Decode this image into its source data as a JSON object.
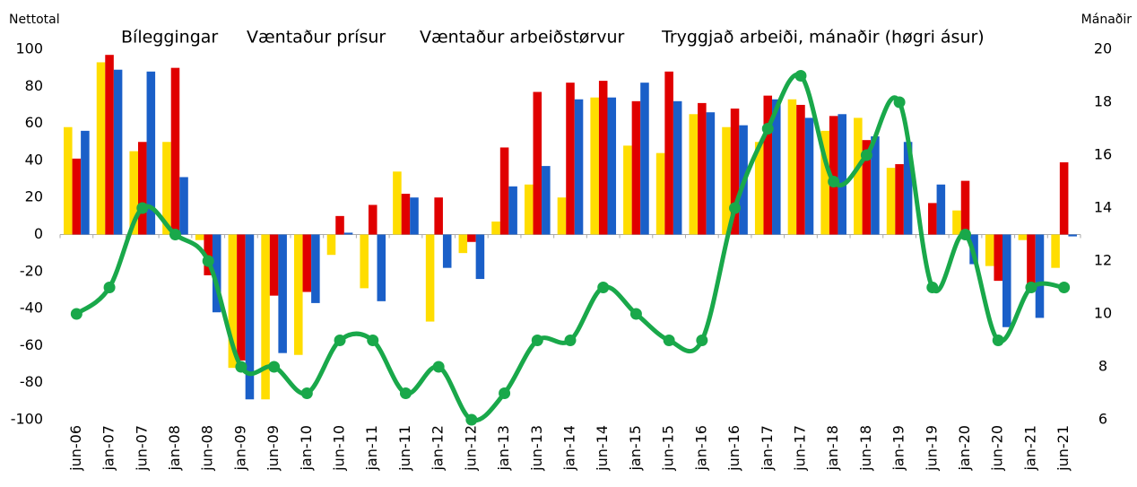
{
  "chart_data": {
    "type": "bar",
    "y_label": "Nettotal",
    "y2_label": "Mánaðir",
    "categories": [
      "jun-06",
      "jan-07",
      "jun-07",
      "jan-08",
      "jun-08",
      "jan-09",
      "jun-09",
      "jan-10",
      "jun-10",
      "jan-11",
      "jun-11",
      "jan-12",
      "jun-12",
      "jan-13",
      "jun-13",
      "jan-14",
      "jun-14",
      "jan-15",
      "jun-15",
      "jan-16",
      "jun-16",
      "jan-17",
      "jun-17",
      "jan-18",
      "jun-18",
      "jan-19",
      "jun-19",
      "jan-20",
      "jun-20",
      "jan-21",
      "jun-21"
    ],
    "series": [
      {
        "name": "Bíleggingar",
        "color": "#ffdd00",
        "type": "bar",
        "values": [
          58,
          93,
          45,
          50,
          -3,
          -72,
          -89,
          -65,
          -11,
          -29,
          34,
          -47,
          -10,
          7,
          27,
          20,
          74,
          48,
          44,
          65,
          58,
          50,
          73,
          56,
          63,
          36,
          0,
          13,
          -17,
          -3,
          -18
        ]
      },
      {
        "name": "Væntaður prísur",
        "color": "#e00000",
        "type": "bar",
        "values": [
          41,
          97,
          50,
          90,
          -22,
          -68,
          -33,
          -31,
          10,
          16,
          22,
          20,
          -4,
          47,
          77,
          82,
          83,
          72,
          88,
          71,
          68,
          75,
          70,
          64,
          51,
          38,
          17,
          29,
          -25,
          -30,
          39
        ]
      },
      {
        "name": "Væntaður arbeiðstørvur",
        "color": "#1a5fc8",
        "type": "bar",
        "values": [
          56,
          89,
          88,
          31,
          -42,
          -89,
          -64,
          -37,
          1,
          -36,
          20,
          -18,
          -24,
          26,
          37,
          73,
          74,
          82,
          72,
          66,
          59,
          73,
          63,
          65,
          53,
          50,
          27,
          -16,
          -50,
          -45,
          -1
        ]
      },
      {
        "name": "Tryggjað arbeiði, mánaðir (høgri ásur)",
        "color": "#19a84a",
        "type": "line",
        "axis": "y2",
        "values": [
          10,
          11,
          14,
          13,
          12,
          8,
          8,
          7,
          9,
          9,
          7,
          8,
          6,
          7,
          9,
          9,
          11,
          10,
          9,
          9,
          14,
          17,
          19,
          15,
          16,
          18,
          11,
          13,
          9,
          11,
          11
        ]
      }
    ],
    "ylim": [
      -100,
      100
    ],
    "yticks": [
      -100,
      -80,
      -60,
      -40,
      -20,
      0,
      20,
      40,
      60,
      80,
      100
    ],
    "y2lim": [
      6,
      20
    ],
    "y2ticks": [
      6,
      8,
      10,
      12,
      14,
      16,
      18,
      20
    ]
  }
}
